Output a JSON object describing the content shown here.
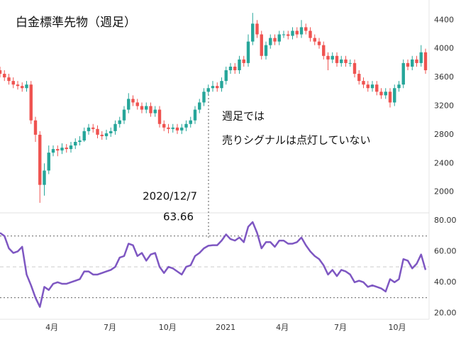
{
  "chart_data": [
    {
      "type": "candlestick",
      "title": "白金標準先物（週足）",
      "up_color": "#26a69a",
      "down_color": "#ef5350",
      "ylim": [
        1710,
        4680
      ],
      "yticks": [
        2000,
        2400,
        2800,
        3200,
        3600,
        4000,
        4400
      ],
      "annotations": [
        "2020/12/7",
        "63.66",
        "週足では",
        "売りシグナルは点灯していない"
      ],
      "open": [
        3700,
        3650,
        3600,
        3550,
        3500,
        3480,
        3450,
        3500,
        3000,
        2800,
        2100,
        2300,
        2550,
        2600,
        2580,
        2620,
        2600,
        2650,
        2700,
        2720,
        2850,
        2900,
        2880,
        2800,
        2780,
        2820,
        2850,
        2950,
        3000,
        3150,
        3300,
        3250,
        3200,
        3150,
        3200,
        3100,
        3150,
        2950,
        2900,
        2880,
        2900,
        2860,
        2900,
        2950,
        3000,
        3150,
        3250,
        3400,
        3450,
        3480,
        3450,
        3550,
        3700,
        3750,
        3700,
        3850,
        3800,
        4100,
        4350,
        4200,
        3900,
        4050,
        4150,
        4100,
        4200,
        4200,
        4180,
        4250,
        4200,
        4300,
        4250,
        4150,
        4100,
        4050,
        3900,
        3850,
        3900,
        3800,
        3850,
        3800,
        3800,
        3650,
        3550,
        3500,
        3450,
        3500,
        3400,
        3350,
        3400,
        3250,
        3450,
        3500,
        3800,
        3750,
        3850,
        3800,
        3950
      ],
      "high": [
        3750,
        3700,
        3650,
        3600,
        3550,
        3530,
        3550,
        3550,
        3050,
        2850,
        2400,
        2650,
        2650,
        2650,
        2680,
        2670,
        2700,
        2750,
        2780,
        2900,
        2950,
        2950,
        2930,
        2850,
        2870,
        2900,
        3000,
        3050,
        3200,
        3380,
        3350,
        3300,
        3250,
        3250,
        3250,
        3200,
        3200,
        3000,
        2950,
        2950,
        2950,
        2950,
        3000,
        3050,
        3200,
        3300,
        3450,
        3500,
        3550,
        3530,
        3600,
        3750,
        3800,
        3800,
        3900,
        3900,
        4200,
        4500,
        4400,
        4250,
        4100,
        4200,
        4200,
        4250,
        4250,
        4250,
        4300,
        4300,
        4400,
        4350,
        4300,
        4200,
        4150,
        4100,
        3950,
        3950,
        3950,
        3900,
        3900,
        3850,
        3850,
        3700,
        3600,
        3550,
        3550,
        3550,
        3450,
        3450,
        3450,
        3500,
        3550,
        3850,
        3850,
        3900,
        3900,
        4050,
        4000
      ],
      "low": [
        3600,
        3550,
        3500,
        3450,
        3430,
        3400,
        3400,
        2950,
        2700,
        1850,
        1950,
        2250,
        2500,
        2500,
        2530,
        2550,
        2550,
        2600,
        2650,
        2700,
        2800,
        2830,
        2750,
        2730,
        2730,
        2770,
        2800,
        2900,
        2950,
        3100,
        3200,
        3150,
        3100,
        3100,
        3050,
        3050,
        2900,
        2850,
        2820,
        2830,
        2810,
        2810,
        2850,
        2900,
        2950,
        3100,
        3200,
        3350,
        3400,
        3400,
        3400,
        3500,
        3650,
        3650,
        3650,
        3750,
        3750,
        4050,
        4150,
        3850,
        3850,
        4000,
        4050,
        4050,
        4150,
        4130,
        4130,
        4150,
        4150,
        4200,
        4100,
        4050,
        4000,
        3850,
        3700,
        3800,
        3750,
        3750,
        3750,
        3750,
        3600,
        3500,
        3450,
        3400,
        3400,
        3350,
        3300,
        3300,
        3180,
        3200,
        3400,
        3450,
        3700,
        3700,
        3750,
        3750,
        3650
      ],
      "close": [
        3650,
        3600,
        3550,
        3500,
        3480,
        3450,
        3500,
        3000,
        2800,
        2100,
        2300,
        2550,
        2600,
        2580,
        2620,
        2600,
        2650,
        2700,
        2720,
        2850,
        2900,
        2880,
        2800,
        2780,
        2820,
        2850,
        2950,
        3000,
        3150,
        3300,
        3250,
        3200,
        3150,
        3200,
        3100,
        3150,
        2950,
        2900,
        2880,
        2900,
        2860,
        2900,
        2950,
        3000,
        3150,
        3250,
        3400,
        3450,
        3480,
        3450,
        3550,
        3700,
        3750,
        3700,
        3850,
        3800,
        4100,
        4350,
        4200,
        3900,
        4050,
        4150,
        4100,
        4200,
        4200,
        4180,
        4250,
        4200,
        4300,
        4250,
        4150,
        4100,
        4050,
        3900,
        3850,
        3900,
        3800,
        3850,
        3800,
        3800,
        3650,
        3550,
        3500,
        3450,
        3500,
        3400,
        3350,
        3400,
        3250,
        3450,
        3500,
        3800,
        3750,
        3850,
        3800,
        3950,
        3700
      ]
    },
    {
      "type": "line",
      "color": "#7e57c2",
      "ylim": [
        16,
        85
      ],
      "yticks": [
        {
          "value": 20,
          "label": "20.00"
        },
        {
          "value": 40,
          "label": "40.00"
        },
        {
          "value": 60,
          "label": "60.00"
        },
        {
          "value": 80,
          "label": "80.00"
        }
      ],
      "reference_lines": [
        70,
        50,
        30
      ],
      "xlim": [
        0,
        96.8
      ],
      "xticks": [
        {
          "value": 11.7,
          "label": "4月"
        },
        {
          "value": 24.8,
          "label": "7月"
        },
        {
          "value": 37.8,
          "label": "10月"
        },
        {
          "value": 50.9,
          "label": "2021"
        },
        {
          "value": 63.7,
          "label": "4月"
        },
        {
          "value": 76.8,
          "label": "7月"
        },
        {
          "value": 89.6,
          "label": "10月"
        }
      ],
      "values": [
        72,
        70,
        62,
        59,
        60,
        63,
        45,
        38,
        30,
        24,
        37,
        35,
        39,
        40,
        39,
        39,
        40,
        41,
        42,
        47,
        47,
        45,
        45,
        46,
        47,
        48,
        50,
        56,
        57,
        65,
        64,
        57,
        59,
        54,
        58,
        59,
        50,
        46,
        50,
        49,
        47,
        45,
        50,
        51,
        57,
        59,
        62,
        63.66,
        64,
        64,
        67,
        71,
        68,
        67,
        69,
        66,
        76,
        79,
        72,
        62,
        66,
        66,
        63,
        67,
        67,
        65,
        65,
        66,
        69,
        64,
        60,
        57,
        55,
        51,
        45,
        48,
        44,
        48,
        47,
        45,
        40,
        41,
        40,
        37,
        38,
        37,
        36,
        34,
        42,
        40,
        42,
        55,
        54,
        49,
        52,
        58,
        48
      ]
    }
  ]
}
